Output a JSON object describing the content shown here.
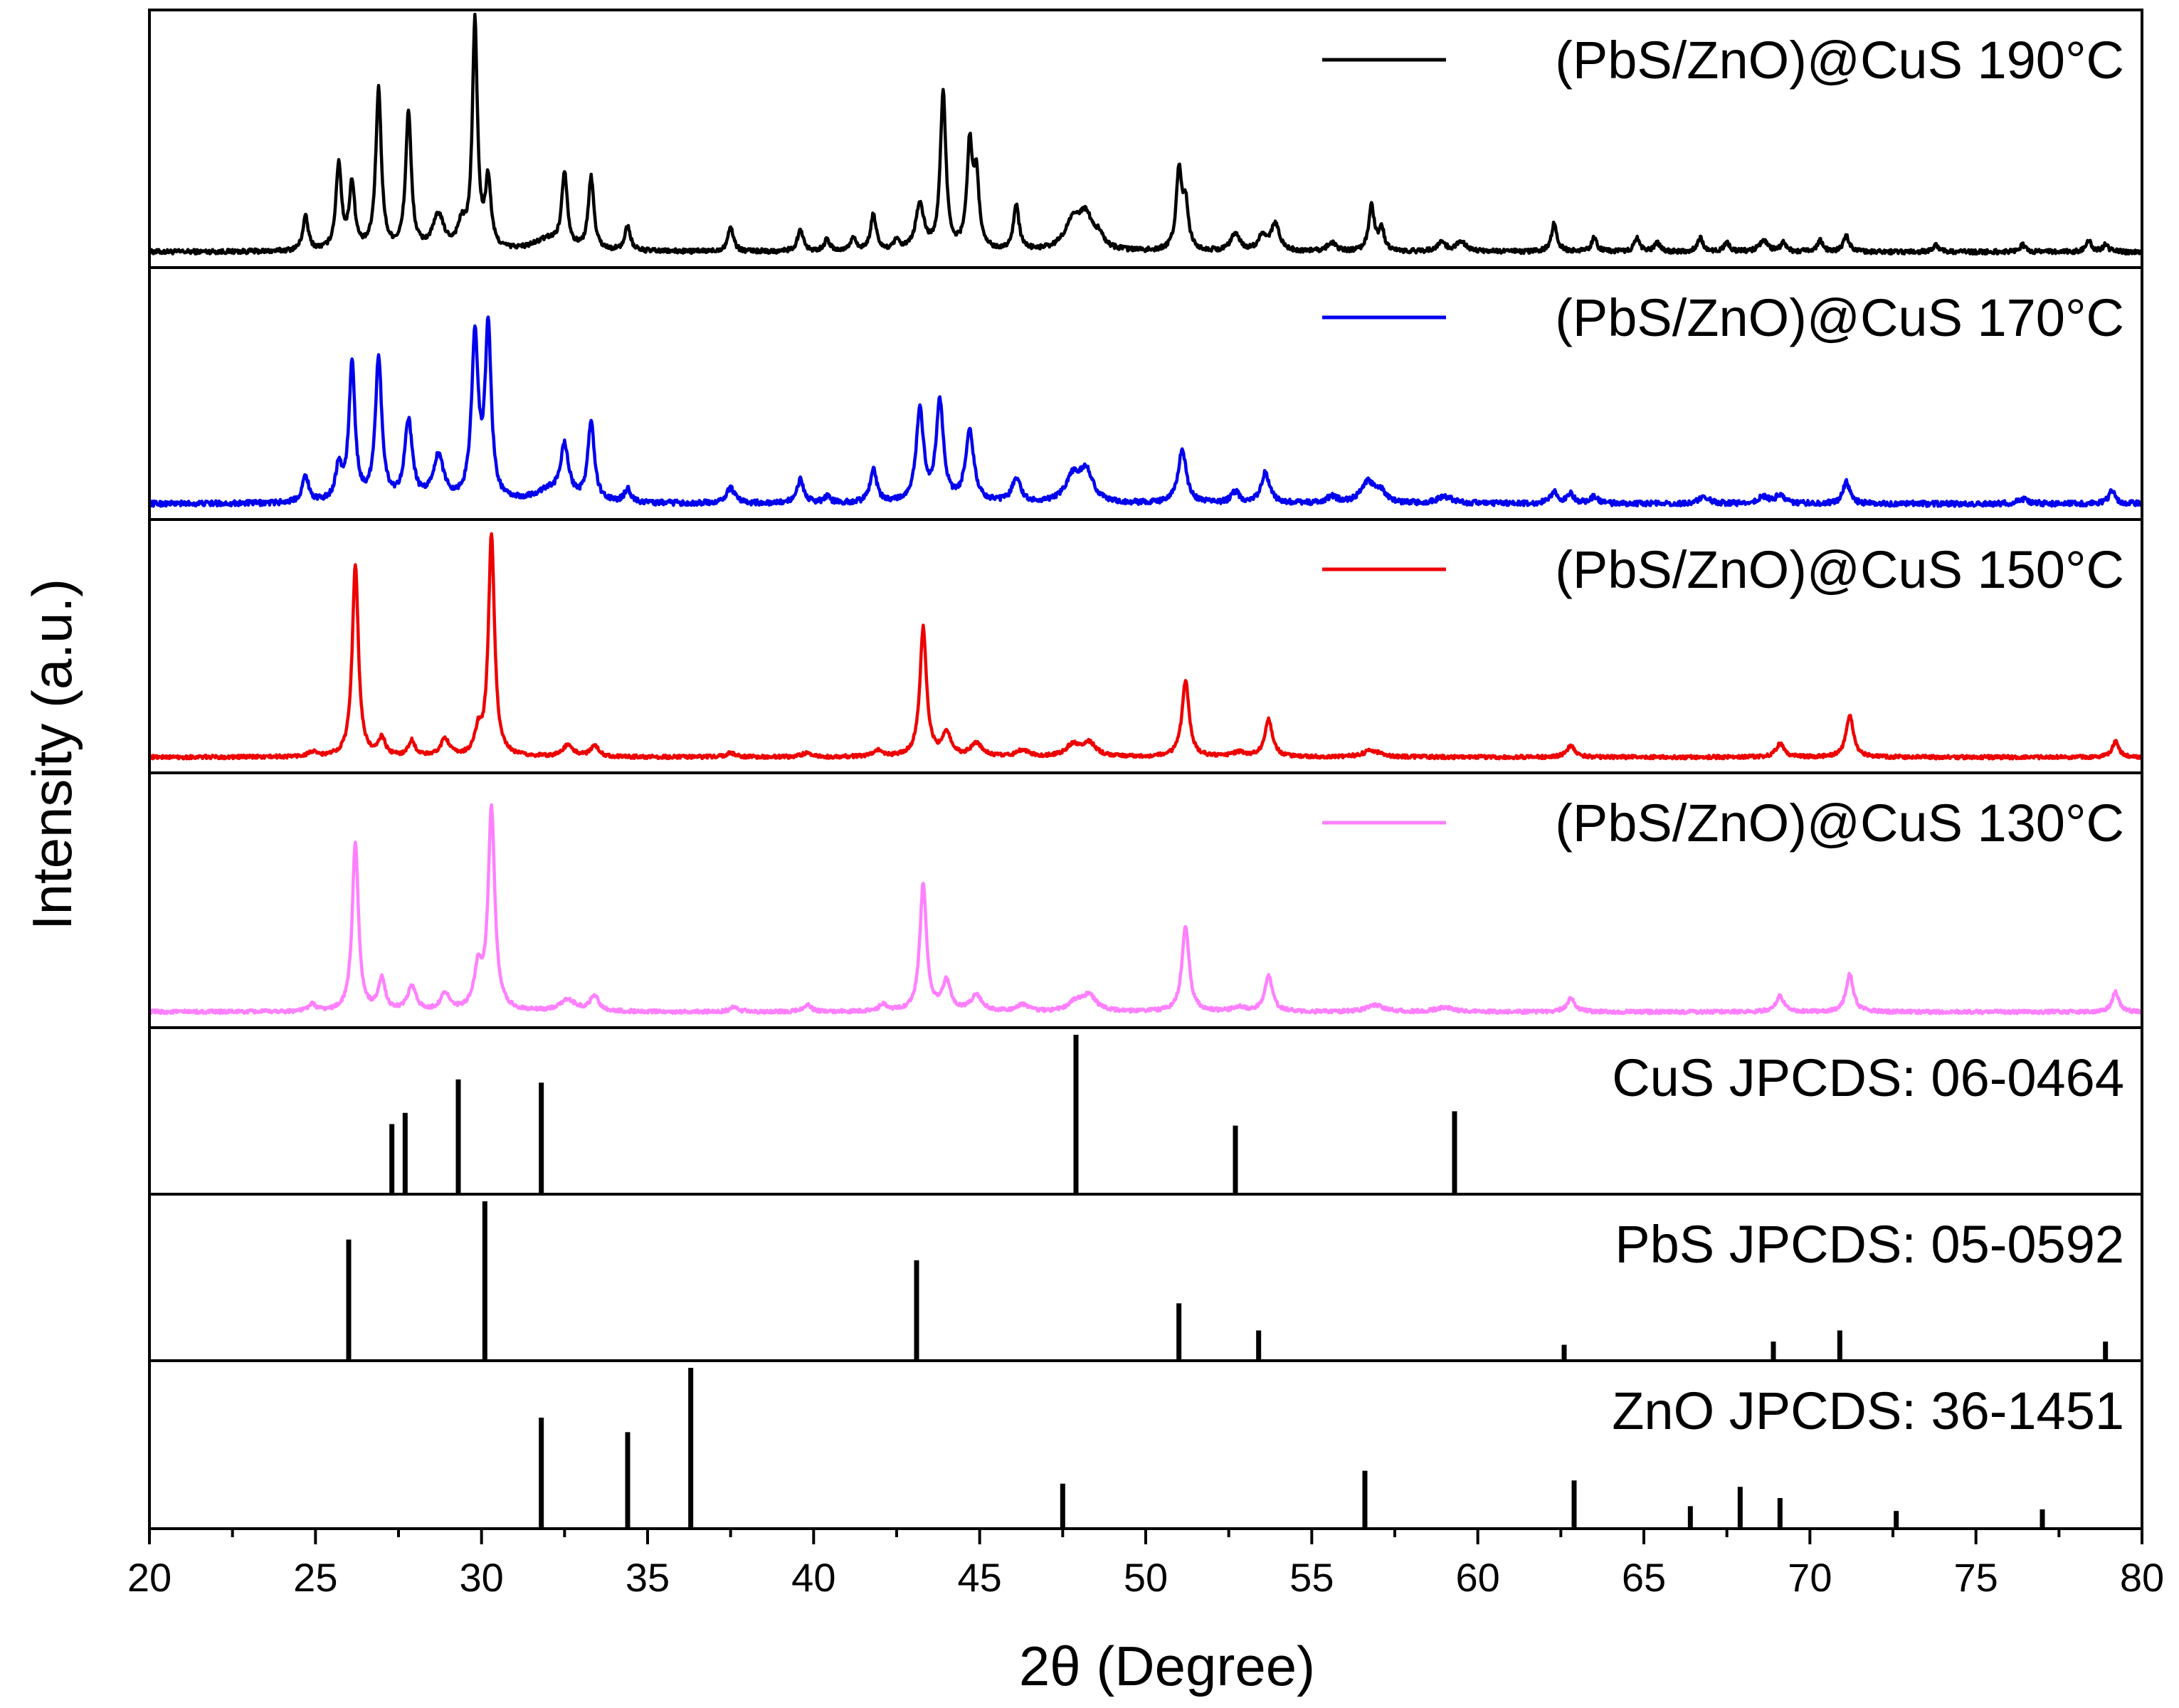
{
  "chart_data": {
    "type": "line",
    "xlabel": "2θ (Degree)",
    "ylabel": "Intensity (a.u.)",
    "xlim": [
      20,
      80
    ],
    "x_ticks": [
      "20",
      "25",
      "30",
      "35",
      "40",
      "45",
      "50",
      "55",
      "60",
      "65",
      "70",
      "75",
      "80"
    ],
    "grid": false,
    "series": [
      {
        "name": "(PbS/ZnO)@CuS 190°C",
        "color": "#000000",
        "noise": 0.01,
        "peaks": [
          [
            24.7,
            0.15,
            0.1
          ],
          [
            25.7,
            0.38,
            0.1
          ],
          [
            26.1,
            0.29,
            0.1
          ],
          [
            26.9,
            0.71,
            0.1
          ],
          [
            27.8,
            0.61,
            0.1
          ],
          [
            28.7,
            0.15,
            0.2
          ],
          [
            29.4,
            0.1,
            0.15
          ],
          [
            29.8,
            1.0,
            0.09
          ],
          [
            30.2,
            0.3,
            0.1
          ],
          [
            32.0,
            0.05,
            0.5
          ],
          [
            32.5,
            0.33,
            0.1
          ],
          [
            33.3,
            0.32,
            0.1
          ],
          [
            34.4,
            0.11,
            0.1
          ],
          [
            37.5,
            0.11,
            0.1
          ],
          [
            39.6,
            0.1,
            0.1
          ],
          [
            40.4,
            0.05,
            0.1
          ],
          [
            41.2,
            0.06,
            0.1
          ],
          [
            41.8,
            0.16,
            0.1
          ],
          [
            42.5,
            0.04,
            0.1
          ],
          [
            43.2,
            0.2,
            0.15
          ],
          [
            43.9,
            0.7,
            0.1
          ],
          [
            44.7,
            0.45,
            0.1
          ],
          [
            44.9,
            0.3,
            0.1
          ],
          [
            46.1,
            0.2,
            0.1
          ],
          [
            47.8,
            0.12,
            0.3
          ],
          [
            48.2,
            0.14,
            0.25
          ],
          [
            48.6,
            0.05,
            0.15
          ],
          [
            51.0,
            0.34,
            0.1
          ],
          [
            51.2,
            0.2,
            0.1
          ],
          [
            52.7,
            0.08,
            0.15
          ],
          [
            53.5,
            0.06,
            0.15
          ],
          [
            53.9,
            0.12,
            0.15
          ],
          [
            55.6,
            0.04,
            0.15
          ],
          [
            56.8,
            0.2,
            0.1
          ],
          [
            57.1,
            0.1,
            0.1
          ],
          [
            58.9,
            0.04,
            0.15
          ],
          [
            59.5,
            0.04,
            0.2
          ],
          [
            62.3,
            0.13,
            0.1
          ],
          [
            63.5,
            0.06,
            0.1
          ],
          [
            64.8,
            0.06,
            0.1
          ],
          [
            65.4,
            0.04,
            0.1
          ],
          [
            66.7,
            0.06,
            0.1
          ],
          [
            67.5,
            0.04,
            0.1
          ],
          [
            68.6,
            0.05,
            0.15
          ],
          [
            69.2,
            0.04,
            0.1
          ],
          [
            70.3,
            0.05,
            0.1
          ],
          [
            71.1,
            0.07,
            0.1
          ],
          [
            73.8,
            0.03,
            0.1
          ],
          [
            76.4,
            0.03,
            0.1
          ],
          [
            78.4,
            0.05,
            0.1
          ],
          [
            78.9,
            0.03,
            0.1
          ]
        ]
      },
      {
        "name": "(PbS/ZnO)@CuS 170°C",
        "color": "#0000ee",
        "noise": 0.012,
        "peaks": [
          [
            24.7,
            0.12,
            0.12
          ],
          [
            25.7,
            0.15,
            0.12
          ],
          [
            26.1,
            0.62,
            0.11
          ],
          [
            26.9,
            0.64,
            0.12
          ],
          [
            27.8,
            0.36,
            0.14
          ],
          [
            28.7,
            0.2,
            0.2
          ],
          [
            29.8,
            0.74,
            0.12
          ],
          [
            30.2,
            0.78,
            0.11
          ],
          [
            32.0,
            0.05,
            0.5
          ],
          [
            32.5,
            0.24,
            0.15
          ],
          [
            33.3,
            0.36,
            0.12
          ],
          [
            34.4,
            0.06,
            0.12
          ],
          [
            37.5,
            0.07,
            0.15
          ],
          [
            39.6,
            0.11,
            0.12
          ],
          [
            40.4,
            0.03,
            0.12
          ],
          [
            41.8,
            0.15,
            0.12
          ],
          [
            43.2,
            0.42,
            0.13
          ],
          [
            43.8,
            0.45,
            0.13
          ],
          [
            44.7,
            0.32,
            0.15
          ],
          [
            46.1,
            0.11,
            0.15
          ],
          [
            47.8,
            0.11,
            0.25
          ],
          [
            48.2,
            0.14,
            0.25
          ],
          [
            51.1,
            0.24,
            0.15
          ],
          [
            52.7,
            0.05,
            0.15
          ],
          [
            53.6,
            0.14,
            0.15
          ],
          [
            55.6,
            0.03,
            0.2
          ],
          [
            56.7,
            0.1,
            0.25
          ],
          [
            57.1,
            0.04,
            0.15
          ],
          [
            59.0,
            0.03,
            0.3
          ],
          [
            62.3,
            0.05,
            0.15
          ],
          [
            62.8,
            0.04,
            0.12
          ],
          [
            63.5,
            0.03,
            0.15
          ],
          [
            66.8,
            0.03,
            0.2
          ],
          [
            68.6,
            0.03,
            0.2
          ],
          [
            69.1,
            0.04,
            0.15
          ],
          [
            71.1,
            0.1,
            0.12
          ],
          [
            76.4,
            0.02,
            0.2
          ],
          [
            79.1,
            0.06,
            0.12
          ]
        ]
      },
      {
        "name": "(PbS/ZnO)@CuS 150°C",
        "color": "#ee0000",
        "noise": 0.008,
        "peaks": [
          [
            24.9,
            0.02,
            0.15
          ],
          [
            26.2,
            0.87,
            0.11
          ],
          [
            27.0,
            0.08,
            0.12
          ],
          [
            27.9,
            0.07,
            0.12
          ],
          [
            28.9,
            0.08,
            0.15
          ],
          [
            29.9,
            0.1,
            0.12
          ],
          [
            30.3,
            1.0,
            0.11
          ],
          [
            32.6,
            0.05,
            0.2
          ],
          [
            33.4,
            0.05,
            0.15
          ],
          [
            37.5,
            0.02,
            0.15
          ],
          [
            39.8,
            0.02,
            0.15
          ],
          [
            41.9,
            0.03,
            0.15
          ],
          [
            43.3,
            0.58,
            0.12
          ],
          [
            44.0,
            0.11,
            0.15
          ],
          [
            44.9,
            0.06,
            0.2
          ],
          [
            46.3,
            0.03,
            0.2
          ],
          [
            47.8,
            0.05,
            0.25
          ],
          [
            48.3,
            0.06,
            0.25
          ],
          [
            51.2,
            0.34,
            0.13
          ],
          [
            52.8,
            0.02,
            0.2
          ],
          [
            53.7,
            0.17,
            0.14
          ],
          [
            56.8,
            0.03,
            0.3
          ],
          [
            62.8,
            0.05,
            0.15
          ],
          [
            69.1,
            0.06,
            0.15
          ],
          [
            71.2,
            0.19,
            0.13
          ],
          [
            79.2,
            0.07,
            0.12
          ]
        ]
      },
      {
        "name": "(PbS/ZnO)@CuS 130°C",
        "color": "#ff80ff",
        "noise": 0.008,
        "peaks": [
          [
            24.9,
            0.03,
            0.15
          ],
          [
            26.2,
            0.76,
            0.11
          ],
          [
            27.0,
            0.14,
            0.12
          ],
          [
            27.9,
            0.11,
            0.15
          ],
          [
            28.9,
            0.08,
            0.15
          ],
          [
            29.9,
            0.18,
            0.14
          ],
          [
            30.3,
            0.9,
            0.12
          ],
          [
            32.6,
            0.05,
            0.3
          ],
          [
            33.4,
            0.07,
            0.15
          ],
          [
            37.6,
            0.02,
            0.15
          ],
          [
            39.8,
            0.03,
            0.15
          ],
          [
            42.1,
            0.03,
            0.15
          ],
          [
            43.3,
            0.57,
            0.12
          ],
          [
            44.0,
            0.13,
            0.15
          ],
          [
            44.9,
            0.07,
            0.2
          ],
          [
            46.3,
            0.03,
            0.2
          ],
          [
            47.9,
            0.04,
            0.25
          ],
          [
            48.3,
            0.07,
            0.25
          ],
          [
            51.2,
            0.38,
            0.13
          ],
          [
            52.8,
            0.02,
            0.2
          ],
          [
            53.7,
            0.16,
            0.14
          ],
          [
            56.9,
            0.03,
            0.3
          ],
          [
            59.0,
            0.02,
            0.3
          ],
          [
            62.8,
            0.06,
            0.15
          ],
          [
            69.1,
            0.07,
            0.15
          ],
          [
            71.2,
            0.17,
            0.13
          ],
          [
            79.2,
            0.09,
            0.12
          ]
        ]
      }
    ],
    "references": [
      {
        "name": "CuS JPCDS: 06-0464",
        "sticks": [
          [
            27.3,
            0.44
          ],
          [
            27.7,
            0.51
          ],
          [
            29.3,
            0.72
          ],
          [
            31.8,
            0.7
          ],
          [
            47.9,
            1.0
          ],
          [
            52.7,
            0.43
          ],
          [
            59.3,
            0.52
          ]
        ]
      },
      {
        "name": "PbS JPCDS: 05-0592",
        "sticks": [
          [
            26.0,
            0.76
          ],
          [
            30.1,
            1.0
          ],
          [
            43.1,
            0.63
          ],
          [
            51.0,
            0.36
          ],
          [
            53.4,
            0.19
          ],
          [
            62.6,
            0.1
          ],
          [
            68.9,
            0.12
          ],
          [
            70.9,
            0.19
          ],
          [
            78.9,
            0.12
          ]
        ]
      },
      {
        "name": "ZnO JPCDS: 36-1451",
        "sticks": [
          [
            31.8,
            0.69
          ],
          [
            34.4,
            0.6
          ],
          [
            36.3,
            1.0
          ],
          [
            47.5,
            0.28
          ],
          [
            56.6,
            0.36
          ],
          [
            62.9,
            0.3
          ],
          [
            66.4,
            0.14
          ],
          [
            67.9,
            0.26
          ],
          [
            69.1,
            0.19
          ],
          [
            72.6,
            0.11
          ],
          [
            77.0,
            0.12
          ]
        ]
      }
    ]
  }
}
